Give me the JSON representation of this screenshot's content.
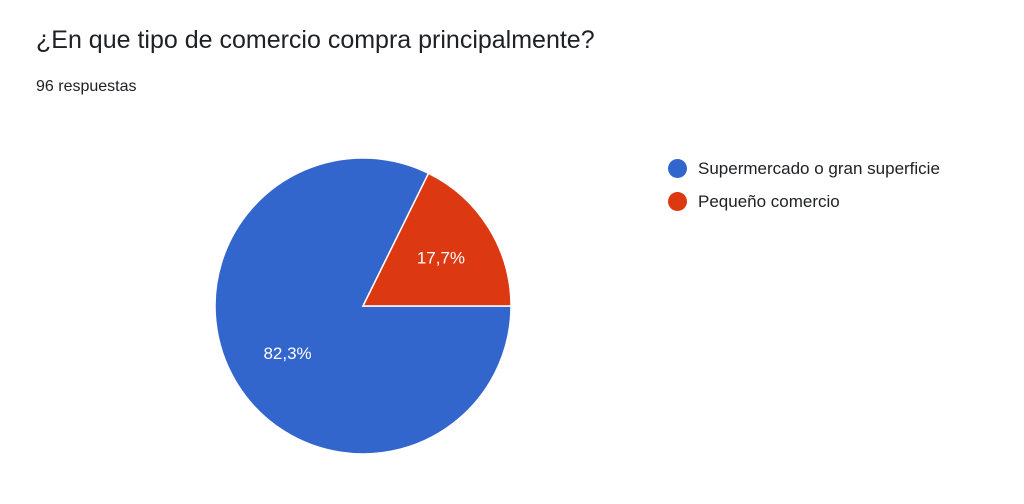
{
  "title": "¿En que tipo de comercio compra principalmente?",
  "response_count": "96 respuestas",
  "chart_data": {
    "type": "pie",
    "title": "¿En que tipo de comercio compra principalmente?",
    "legend_position": "right",
    "slices": [
      {
        "label": "Supermercado o gran superficie",
        "value": 82.3,
        "display": "82,3%",
        "color": "#3366cc"
      },
      {
        "label": "Pequeño comercio",
        "value": 17.7,
        "display": "17,7%",
        "color": "#dc3912"
      }
    ]
  }
}
